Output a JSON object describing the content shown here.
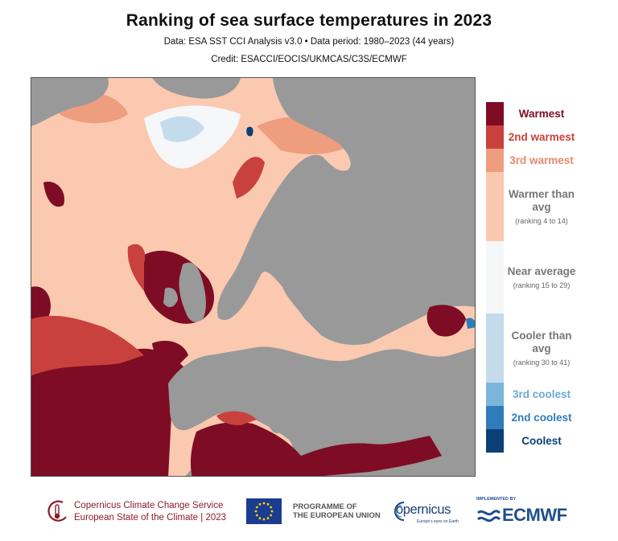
{
  "header": {
    "title": "Ranking of sea surface temperatures in 2023",
    "subtitle": "Data: ESA SST CCI Analysis v3.0 • Data period: 1980–2023 (44 years)",
    "credit": "Credit: ESACCI/EOCIS/UKMCAS/C3S/ECMWF"
  },
  "map": {
    "colors": {
      "warmest": "#7e0c24",
      "second_warmest": "#c9413c",
      "third_warmest": "#ee9d7f",
      "warmer": "#fac9b0",
      "near_average": "#f5f7f8",
      "cooler": "#c4dbec",
      "third_coolest": "#7cb5da",
      "second_coolest": "#2f7cb8",
      "coolest": "#0b3f75",
      "land": "#999999"
    }
  },
  "legend": {
    "items": [
      {
        "label": "Warmest",
        "sub": "",
        "color": "#7e0c24",
        "text_color": "#7e0c24"
      },
      {
        "label": "2nd warmest",
        "sub": "",
        "color": "#c9413c",
        "text_color": "#c9413c"
      },
      {
        "label": "3rd warmest",
        "sub": "",
        "color": "#ee9d7f",
        "text_color": "#e9876a"
      },
      {
        "label": "Warmer than avg",
        "sub": "(ranking 4 to 14)",
        "color": "#fac9b0",
        "text_color": "#777777"
      },
      {
        "label": "Near average",
        "sub": "(ranking 15 to 29)",
        "color": "#f5f7f8",
        "text_color": "#777777"
      },
      {
        "label": "Cooler than avg",
        "sub": "(ranking 30 to 41)",
        "color": "#c4dbec",
        "text_color": "#777777"
      },
      {
        "label": "3rd coolest",
        "sub": "",
        "color": "#7cb5da",
        "text_color": "#6aa8d2"
      },
      {
        "label": "2nd coolest",
        "sub": "",
        "color": "#2f7cb8",
        "text_color": "#2f7cb8"
      },
      {
        "label": "Coolest",
        "sub": "",
        "color": "#0b3f75",
        "text_color": "#0b3f75"
      }
    ]
  },
  "footer": {
    "c3s_line1": "Copernicus Climate Change Service",
    "c3s_line2": "European State of the Climate | 2023",
    "eu_line1": "PROGRAMME OF",
    "eu_line2": "THE EUROPEAN UNION",
    "copernicus": "opernicus",
    "copernicus_tag": "Europe's eyes on Earth",
    "ecmwf_implemented": "IMPLEMENTED BY",
    "ecmwf": "ECMWF"
  }
}
